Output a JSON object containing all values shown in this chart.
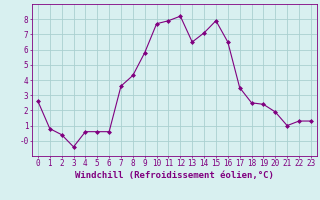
{
  "x": [
    0,
    1,
    2,
    3,
    4,
    5,
    6,
    7,
    8,
    9,
    10,
    11,
    12,
    13,
    14,
    15,
    16,
    17,
    18,
    19,
    20,
    21,
    22,
    23
  ],
  "y": [
    2.6,
    0.8,
    0.4,
    -0.4,
    0.6,
    0.6,
    0.6,
    3.6,
    4.3,
    5.8,
    7.7,
    7.9,
    8.2,
    6.5,
    7.1,
    7.9,
    6.5,
    3.5,
    2.5,
    2.4,
    1.9,
    1.0,
    1.3,
    1.3
  ],
  "line_color": "#800080",
  "marker": "D",
  "marker_size": 2,
  "bg_color": "#d8f0f0",
  "grid_color": "#aad0d0",
  "xlabel": "Windchill (Refroidissement éolien,°C)",
  "ylim": [
    -1,
    9
  ],
  "xlim": [
    -0.5,
    23.5
  ],
  "yticks": [
    0,
    1,
    2,
    3,
    4,
    5,
    6,
    7,
    8
  ],
  "ytick_labels": [
    "-0",
    "1",
    "2",
    "3",
    "4",
    "5",
    "6",
    "7",
    "8"
  ],
  "xticks": [
    0,
    1,
    2,
    3,
    4,
    5,
    6,
    7,
    8,
    9,
    10,
    11,
    12,
    13,
    14,
    15,
    16,
    17,
    18,
    19,
    20,
    21,
    22,
    23
  ],
  "tick_label_size": 5.5,
  "xlabel_size": 6.5,
  "spine_color": "#800080"
}
